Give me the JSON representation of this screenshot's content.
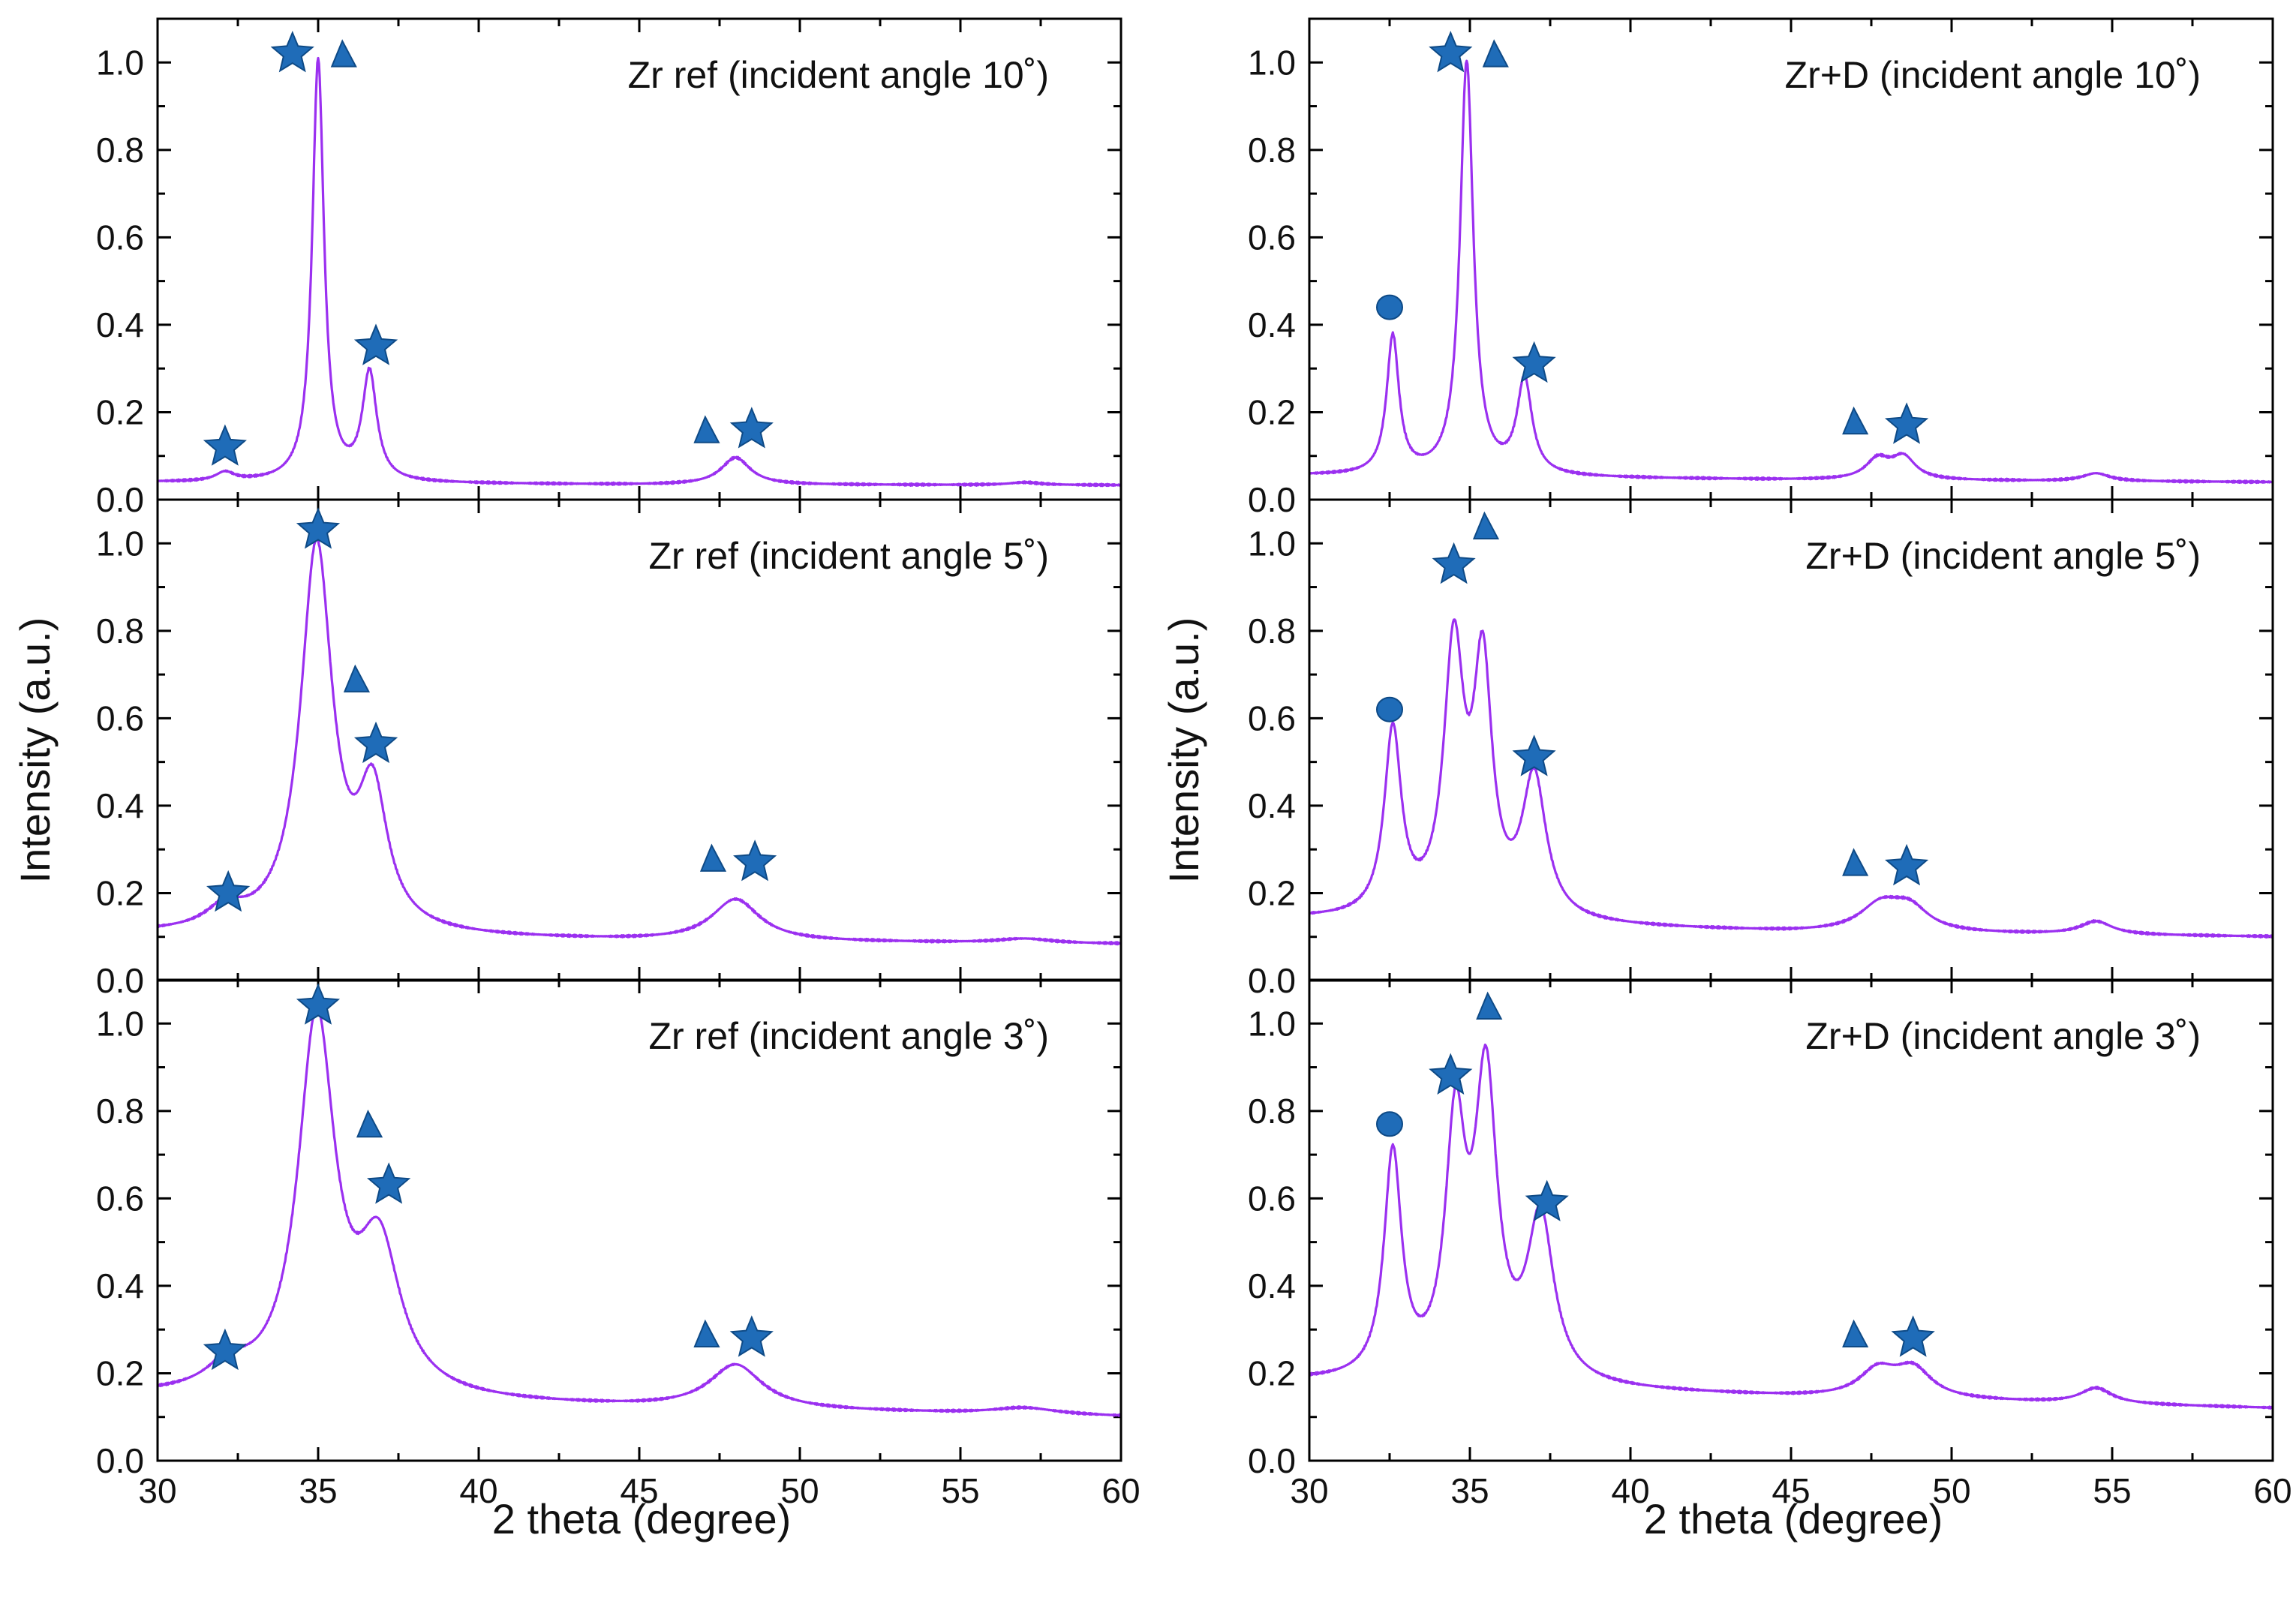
{
  "figure": {
    "y_axis_title": "Intensity (a.u.)",
    "x_axis_title": "2 theta (degree)",
    "curve_color": "#9b30f0",
    "marker_color": "#1f6cb8",
    "marker_edge_color": "#0e4a86"
  },
  "chart_data": [
    {
      "type": "line",
      "column": "left",
      "row": 0,
      "title": "Zr ref (incident angle 10˚)",
      "xlabel": "2 theta (degree)",
      "ylabel": "Intensity (a.u.)",
      "xlim": [
        30,
        60
      ],
      "ylim": [
        0,
        1.1
      ],
      "xticks": [
        "30",
        "35",
        "40",
        "45",
        "50",
        "55",
        "60"
      ],
      "yticks": [
        "0.0",
        "0.2",
        "0.4",
        "0.6",
        "0.8",
        "1.0"
      ],
      "baseline": [
        [
          30,
          0.04
        ],
        [
          45,
          0.034
        ],
        [
          60,
          0.033
        ]
      ],
      "peaks": [
        {
          "center": 32.1,
          "height": 0.02,
          "width": 0.35
        },
        {
          "center": 35.0,
          "height": 0.965,
          "width": 0.22
        },
        {
          "center": 36.6,
          "height": 0.245,
          "width": 0.27
        },
        {
          "center": 48.0,
          "height": 0.062,
          "width": 0.55
        },
        {
          "center": 57.0,
          "height": 0.006,
          "width": 0.6
        }
      ],
      "markers": [
        {
          "shape": "star",
          "x": 32.1,
          "y": 0.12
        },
        {
          "shape": "star",
          "x": 34.2,
          "y": 1.02
        },
        {
          "shape": "triangle",
          "x": 35.8,
          "y": 1.02
        },
        {
          "shape": "star",
          "x": 36.8,
          "y": 0.35
        },
        {
          "shape": "triangle",
          "x": 47.1,
          "y": 0.16
        },
        {
          "shape": "star",
          "x": 48.5,
          "y": 0.16
        }
      ]
    },
    {
      "type": "line",
      "column": "left",
      "row": 1,
      "title": "Zr ref (incident angle 5˚)",
      "xlabel": "2 theta (degree)",
      "ylabel": "Intensity (a.u.)",
      "xlim": [
        30,
        60
      ],
      "ylim": [
        0,
        1.1
      ],
      "xticks": [
        "30",
        "35",
        "40",
        "45",
        "50",
        "55",
        "60"
      ],
      "yticks": [
        "0.0",
        "0.2",
        "0.4",
        "0.6",
        "0.8",
        "1.0"
      ],
      "baseline": [
        [
          30,
          0.105
        ],
        [
          45,
          0.09
        ],
        [
          60,
          0.083
        ]
      ],
      "peaks": [
        {
          "center": 32.1,
          "height": 0.045,
          "width": 0.7
        },
        {
          "center": 34.95,
          "height": 0.88,
          "width": 0.6
        },
        {
          "center": 36.7,
          "height": 0.3,
          "width": 0.55
        },
        {
          "center": 48.0,
          "height": 0.095,
          "width": 0.9
        },
        {
          "center": 57.0,
          "height": 0.01,
          "width": 1.0
        }
      ],
      "markers": [
        {
          "shape": "star",
          "x": 32.2,
          "y": 0.2
        },
        {
          "shape": "star",
          "x": 35.0,
          "y": 1.03
        },
        {
          "shape": "triangle",
          "x": 36.2,
          "y": 0.69
        },
        {
          "shape": "star",
          "x": 36.8,
          "y": 0.54
        },
        {
          "shape": "triangle",
          "x": 47.3,
          "y": 0.28
        },
        {
          "shape": "star",
          "x": 48.6,
          "y": 0.27
        }
      ]
    },
    {
      "type": "line",
      "column": "left",
      "row": 2,
      "title": "Zr ref (incident angle 3˚)",
      "xlabel": "2 theta (degree)",
      "ylabel": "Intensity (a.u.)",
      "xlim": [
        30,
        60
      ],
      "ylim": [
        0,
        1.1
      ],
      "xticks": [
        "30",
        "35",
        "40",
        "45",
        "50",
        "55",
        "60"
      ],
      "yticks": [
        "0.0",
        "0.2",
        "0.4",
        "0.6",
        "0.8",
        "1.0"
      ],
      "baseline": [
        [
          30,
          0.145
        ],
        [
          45,
          0.12
        ],
        [
          60,
          0.1
        ]
      ],
      "peaks": [
        {
          "center": 32.2,
          "height": 0.05,
          "width": 0.8
        },
        {
          "center": 34.95,
          "height": 0.85,
          "width": 0.7
        },
        {
          "center": 36.9,
          "height": 0.32,
          "width": 0.8
        },
        {
          "center": 48.0,
          "height": 0.1,
          "width": 1.0
        },
        {
          "center": 57.0,
          "height": 0.015,
          "width": 1.2
        }
      ],
      "markers": [
        {
          "shape": "star",
          "x": 32.1,
          "y": 0.25
        },
        {
          "shape": "star",
          "x": 35.0,
          "y": 1.04
        },
        {
          "shape": "triangle",
          "x": 36.6,
          "y": 0.77
        },
        {
          "shape": "star",
          "x": 37.2,
          "y": 0.63
        },
        {
          "shape": "triangle",
          "x": 47.1,
          "y": 0.29
        },
        {
          "shape": "star",
          "x": 48.5,
          "y": 0.28
        }
      ]
    },
    {
      "type": "line",
      "column": "right",
      "row": 0,
      "title": "Zr+D (incident angle 10˚)",
      "xlabel": "2 theta (degree)",
      "ylabel": "Intensity (a.u.)",
      "xlim": [
        30,
        60
      ],
      "ylim": [
        0,
        1.1
      ],
      "xticks": [
        "30",
        "35",
        "40",
        "45",
        "50",
        "55",
        "60"
      ],
      "yticks": [
        "0.0",
        "0.2",
        "0.4",
        "0.6",
        "0.8",
        "1.0"
      ],
      "baseline": [
        [
          30,
          0.055
        ],
        [
          45,
          0.045
        ],
        [
          60,
          0.04
        ]
      ],
      "peaks": [
        {
          "center": 32.6,
          "height": 0.315,
          "width": 0.23
        },
        {
          "center": 34.9,
          "height": 0.945,
          "width": 0.25
        },
        {
          "center": 36.7,
          "height": 0.215,
          "width": 0.28
        },
        {
          "center": 47.7,
          "height": 0.045,
          "width": 0.45
        },
        {
          "center": 48.5,
          "height": 0.05,
          "width": 0.45
        },
        {
          "center": 54.5,
          "height": 0.018,
          "width": 0.5
        }
      ],
      "markers": [
        {
          "shape": "circle",
          "x": 32.5,
          "y": 0.44
        },
        {
          "shape": "star",
          "x": 34.4,
          "y": 1.02
        },
        {
          "shape": "triangle",
          "x": 35.8,
          "y": 1.02
        },
        {
          "shape": "star",
          "x": 37.0,
          "y": 0.31
        },
        {
          "shape": "triangle",
          "x": 47.0,
          "y": 0.18
        },
        {
          "shape": "star",
          "x": 48.6,
          "y": 0.17
        }
      ]
    },
    {
      "type": "line",
      "column": "right",
      "row": 1,
      "title": "Zr+D (incident angle 5˚)",
      "xlabel": "2 theta (degree)",
      "ylabel": "Intensity (a.u.)",
      "xlim": [
        30,
        60
      ],
      "ylim": [
        0,
        1.1
      ],
      "xticks": [
        "30",
        "35",
        "40",
        "45",
        "50",
        "55",
        "60"
      ],
      "yticks": [
        "0.0",
        "0.2",
        "0.4",
        "0.6",
        "0.8",
        "1.0"
      ],
      "baseline": [
        [
          30,
          0.14
        ],
        [
          45,
          0.11
        ],
        [
          60,
          0.1
        ]
      ],
      "peaks": [
        {
          "center": 32.6,
          "height": 0.42,
          "width": 0.32
        },
        {
          "center": 34.5,
          "height": 0.6,
          "width": 0.38
        },
        {
          "center": 35.4,
          "height": 0.55,
          "width": 0.35
        },
        {
          "center": 37.0,
          "height": 0.32,
          "width": 0.45
        },
        {
          "center": 47.8,
          "height": 0.06,
          "width": 0.8
        },
        {
          "center": 48.7,
          "height": 0.05,
          "width": 0.7
        },
        {
          "center": 54.5,
          "height": 0.03,
          "width": 0.6
        }
      ],
      "markers": [
        {
          "shape": "circle",
          "x": 32.5,
          "y": 0.62
        },
        {
          "shape": "star",
          "x": 34.5,
          "y": 0.95
        },
        {
          "shape": "triangle",
          "x": 35.5,
          "y": 1.04
        },
        {
          "shape": "star",
          "x": 37.0,
          "y": 0.51
        },
        {
          "shape": "triangle",
          "x": 47.0,
          "y": 0.27
        },
        {
          "shape": "star",
          "x": 48.6,
          "y": 0.26
        }
      ]
    },
    {
      "type": "line",
      "column": "right",
      "row": 2,
      "title": "Zr+D (incident angle 3˚)",
      "xlabel": "2 theta (degree)",
      "ylabel": "Intensity (a.u.)",
      "xlim": [
        30,
        60
      ],
      "ylim": [
        0,
        1.1
      ],
      "xticks": [
        "30",
        "35",
        "40",
        "45",
        "50",
        "55",
        "60"
      ],
      "yticks": [
        "0.0",
        "0.2",
        "0.4",
        "0.6",
        "0.8",
        "1.0"
      ],
      "baseline": [
        [
          30,
          0.18
        ],
        [
          45,
          0.145
        ],
        [
          60,
          0.12
        ]
      ],
      "peaks": [
        {
          "center": 32.6,
          "height": 0.51,
          "width": 0.33
        },
        {
          "center": 34.55,
          "height": 0.55,
          "width": 0.38
        },
        {
          "center": 35.5,
          "height": 0.67,
          "width": 0.42
        },
        {
          "center": 37.2,
          "height": 0.37,
          "width": 0.5
        },
        {
          "center": 47.7,
          "height": 0.06,
          "width": 0.7
        },
        {
          "center": 48.8,
          "height": 0.065,
          "width": 0.7
        },
        {
          "center": 54.5,
          "height": 0.035,
          "width": 0.6
        }
      ],
      "markers": [
        {
          "shape": "circle",
          "x": 32.5,
          "y": 0.77
        },
        {
          "shape": "star",
          "x": 34.4,
          "y": 0.88
        },
        {
          "shape": "triangle",
          "x": 35.6,
          "y": 1.04
        },
        {
          "shape": "star",
          "x": 37.4,
          "y": 0.59
        },
        {
          "shape": "triangle",
          "x": 47.0,
          "y": 0.29
        },
        {
          "shape": "star",
          "x": 48.8,
          "y": 0.28
        }
      ]
    }
  ]
}
